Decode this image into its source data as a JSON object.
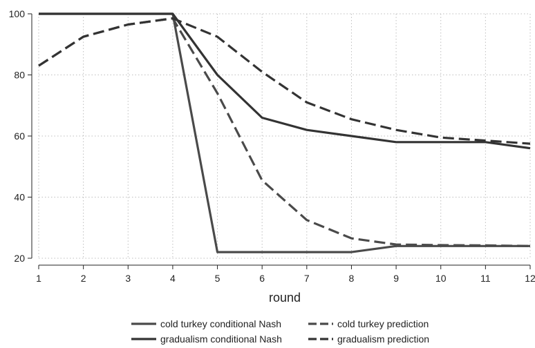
{
  "chart_data": {
    "type": "line",
    "xlabel": "round",
    "ylabel": "",
    "x": [
      1,
      2,
      3,
      4,
      5,
      6,
      7,
      8,
      9,
      10,
      11,
      12
    ],
    "xlim": [
      1,
      12
    ],
    "ylim": [
      20,
      100
    ],
    "xticks": [
      "1",
      "2",
      "3",
      "4",
      "5",
      "6",
      "7",
      "8",
      "9",
      "10",
      "11",
      "12"
    ],
    "yticks": [
      "20",
      "40",
      "60",
      "80",
      "100"
    ],
    "grid": true,
    "legend_position": "bottom",
    "series": [
      {
        "name": "cold turkey conditional Nash",
        "style": "solid",
        "color": "#4a4a4a",
        "values": [
          100,
          100,
          100,
          100,
          22,
          22,
          22,
          22,
          24,
          24,
          24,
          24
        ]
      },
      {
        "name": "gradualism conditional Nash",
        "style": "solid",
        "color": "#333333",
        "values": [
          100,
          100,
          100,
          100,
          80,
          66,
          62,
          60,
          58,
          58,
          58,
          56
        ]
      },
      {
        "name": "cold turkey prediction",
        "style": "dashed",
        "color": "#4a4a4a",
        "values": [
          83,
          92.5,
          96.5,
          98.5,
          74,
          45.5,
          32.5,
          26.5,
          24.5,
          24.3,
          24.2,
          24
        ]
      },
      {
        "name": "gradualism prediction",
        "style": "dashed",
        "color": "#333333",
        "values": [
          83,
          92.5,
          96.5,
          98.5,
          92.5,
          81,
          71,
          65.5,
          62,
          59.5,
          58.5,
          57.5
        ]
      }
    ]
  }
}
